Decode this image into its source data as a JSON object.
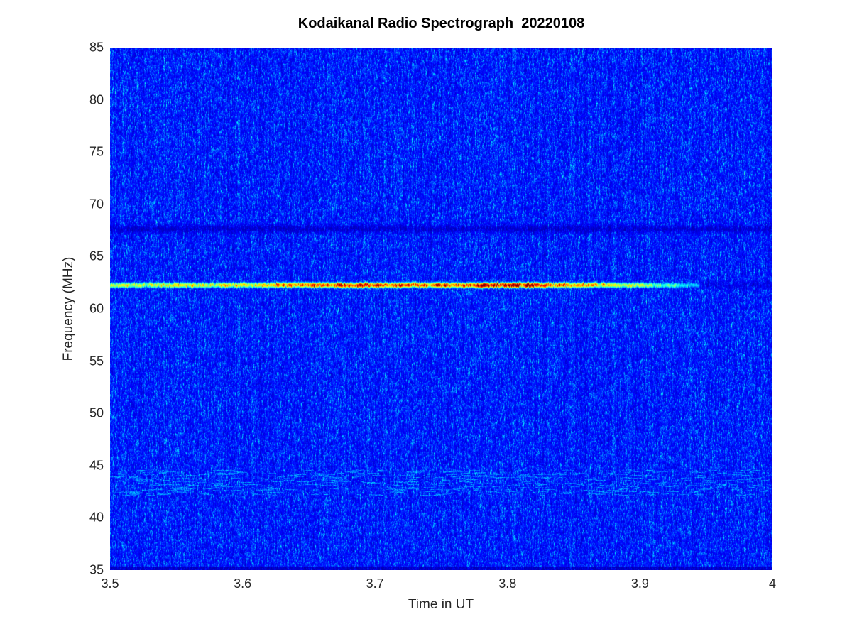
{
  "chart_data": {
    "type": "heatmap",
    "subtype": "radio-spectrogram",
    "title": "Kodaikanal Radio Spectrograph  20220108",
    "xlabel": "Time in UT",
    "ylabel": "Frequency (MHz)",
    "xlim": [
      3.5,
      4
    ],
    "ylim": [
      35,
      85
    ],
    "xticks": {
      "values": [
        3.5,
        3.6,
        3.7,
        3.8,
        3.9,
        4
      ],
      "labels": [
        "3.5",
        "3.6",
        "3.7",
        "3.8",
        "3.9",
        "4"
      ]
    },
    "yticks": {
      "values": [
        35,
        40,
        45,
        50,
        55,
        60,
        65,
        70,
        75,
        80,
        85
      ],
      "labels": [
        "35",
        "40",
        "45",
        "50",
        "55",
        "60",
        "65",
        "70",
        "75",
        "80",
        "85"
      ]
    },
    "colormap": "jet",
    "legend": "none",
    "grid": false,
    "background_noise": {
      "base_level": 0.13,
      "speckle_probability": 0.2,
      "speckle_level": 0.28,
      "seed": 20220108,
      "bottom_dark_rows": 5
    },
    "features": [
      {
        "kind": "emission-line",
        "name": "solar noise-storm continuum band",
        "center_freq_mhz": 62.3,
        "fwhm_mhz": 0.32,
        "t_start": 3.5,
        "t_end": 3.95,
        "envelope_t": [
          3.5,
          3.56,
          3.62,
          3.66,
          3.7,
          3.74,
          3.77,
          3.81,
          3.84,
          3.86,
          3.885,
          3.91,
          3.93,
          3.945,
          3.95
        ],
        "envelope_intensity": [
          0.58,
          0.62,
          0.68,
          0.85,
          0.92,
          0.84,
          0.92,
          0.93,
          0.85,
          0.72,
          0.6,
          0.5,
          0.4,
          0.3,
          0
        ]
      },
      {
        "kind": "dark-band",
        "name": "dark lane near 67.7 MHz",
        "center_freq_mhz": 67.7,
        "fwhm_mhz": 0.34,
        "t_start": 3.5,
        "t_end": 4,
        "depth": 0.45
      },
      {
        "kind": "dark-band",
        "name": "faint dark lane after burst end",
        "center_freq_mhz": 62.3,
        "fwhm_mhz": 0.3,
        "t_start": 3.945,
        "t_end": 4,
        "depth": 0.3
      },
      {
        "kind": "rfi-band",
        "name": "intermittent interference speckle band near 43.4 MHz",
        "center_freq_mhz": 43.4,
        "width_mhz": 2.4,
        "t_start": 3.5,
        "t_end": 4,
        "strength": 0.16,
        "dash_count": 700
      }
    ]
  }
}
